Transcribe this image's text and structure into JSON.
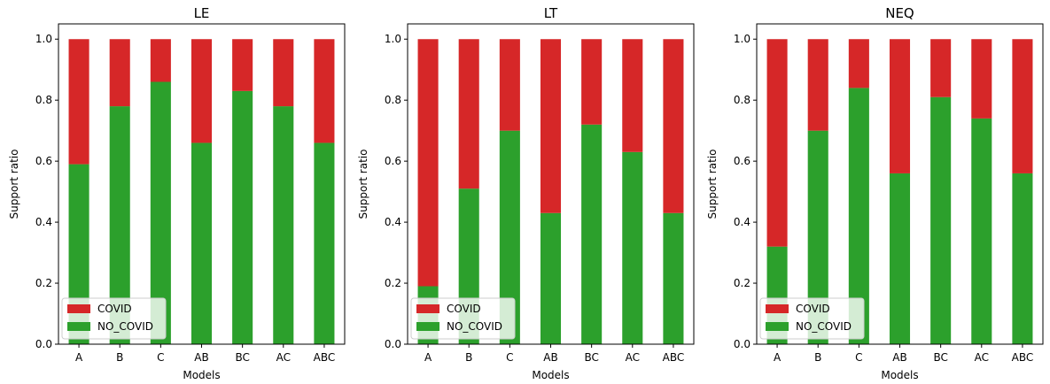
{
  "colors": {
    "covid": "#d62728",
    "no_covid": "#2ca02c"
  },
  "chart_data": [
    {
      "type": "bar",
      "stacked": true,
      "title": "LE",
      "xlabel": "Models",
      "ylabel": "Support ratio",
      "ylim": [
        0,
        1.05
      ],
      "yticks": [
        "0.0",
        "0.2",
        "0.4",
        "0.6",
        "0.8",
        "1.0"
      ],
      "categories": [
        "A",
        "B",
        "C",
        "AB",
        "BC",
        "AC",
        "ABC"
      ],
      "series": [
        {
          "name": "NO_COVID",
          "values": [
            0.59,
            0.78,
            0.86,
            0.66,
            0.83,
            0.78,
            0.66
          ]
        },
        {
          "name": "COVID",
          "values": [
            0.41,
            0.22,
            0.14,
            0.34,
            0.17,
            0.22,
            0.34
          ]
        }
      ],
      "legend": {
        "position": "lower left",
        "labels": [
          "COVID",
          "NO_COVID"
        ]
      }
    },
    {
      "type": "bar",
      "stacked": true,
      "title": "LT",
      "xlabel": "Models",
      "ylabel": "Support ratio",
      "ylim": [
        0,
        1.05
      ],
      "yticks": [
        "0.0",
        "0.2",
        "0.4",
        "0.6",
        "0.8",
        "1.0"
      ],
      "categories": [
        "A",
        "B",
        "C",
        "AB",
        "BC",
        "AC",
        "ABC"
      ],
      "series": [
        {
          "name": "NO_COVID",
          "values": [
            0.19,
            0.51,
            0.7,
            0.43,
            0.72,
            0.63,
            0.43
          ]
        },
        {
          "name": "COVID",
          "values": [
            0.81,
            0.49,
            0.3,
            0.57,
            0.28,
            0.37,
            0.57
          ]
        }
      ],
      "legend": {
        "position": "lower left",
        "labels": [
          "COVID",
          "NO_COVID"
        ]
      }
    },
    {
      "type": "bar",
      "stacked": true,
      "title": "NEQ",
      "xlabel": "Models",
      "ylabel": "Support ratio",
      "ylim": [
        0,
        1.05
      ],
      "yticks": [
        "0.0",
        "0.2",
        "0.4",
        "0.6",
        "0.8",
        "1.0"
      ],
      "categories": [
        "A",
        "B",
        "C",
        "AB",
        "BC",
        "AC",
        "ABC"
      ],
      "series": [
        {
          "name": "NO_COVID",
          "values": [
            0.32,
            0.7,
            0.84,
            0.56,
            0.81,
            0.74,
            0.56
          ]
        },
        {
          "name": "COVID",
          "values": [
            0.68,
            0.3,
            0.16,
            0.44,
            0.19,
            0.26,
            0.44
          ]
        }
      ],
      "legend": {
        "position": "lower left",
        "labels": [
          "COVID",
          "NO_COVID"
        ]
      }
    }
  ]
}
